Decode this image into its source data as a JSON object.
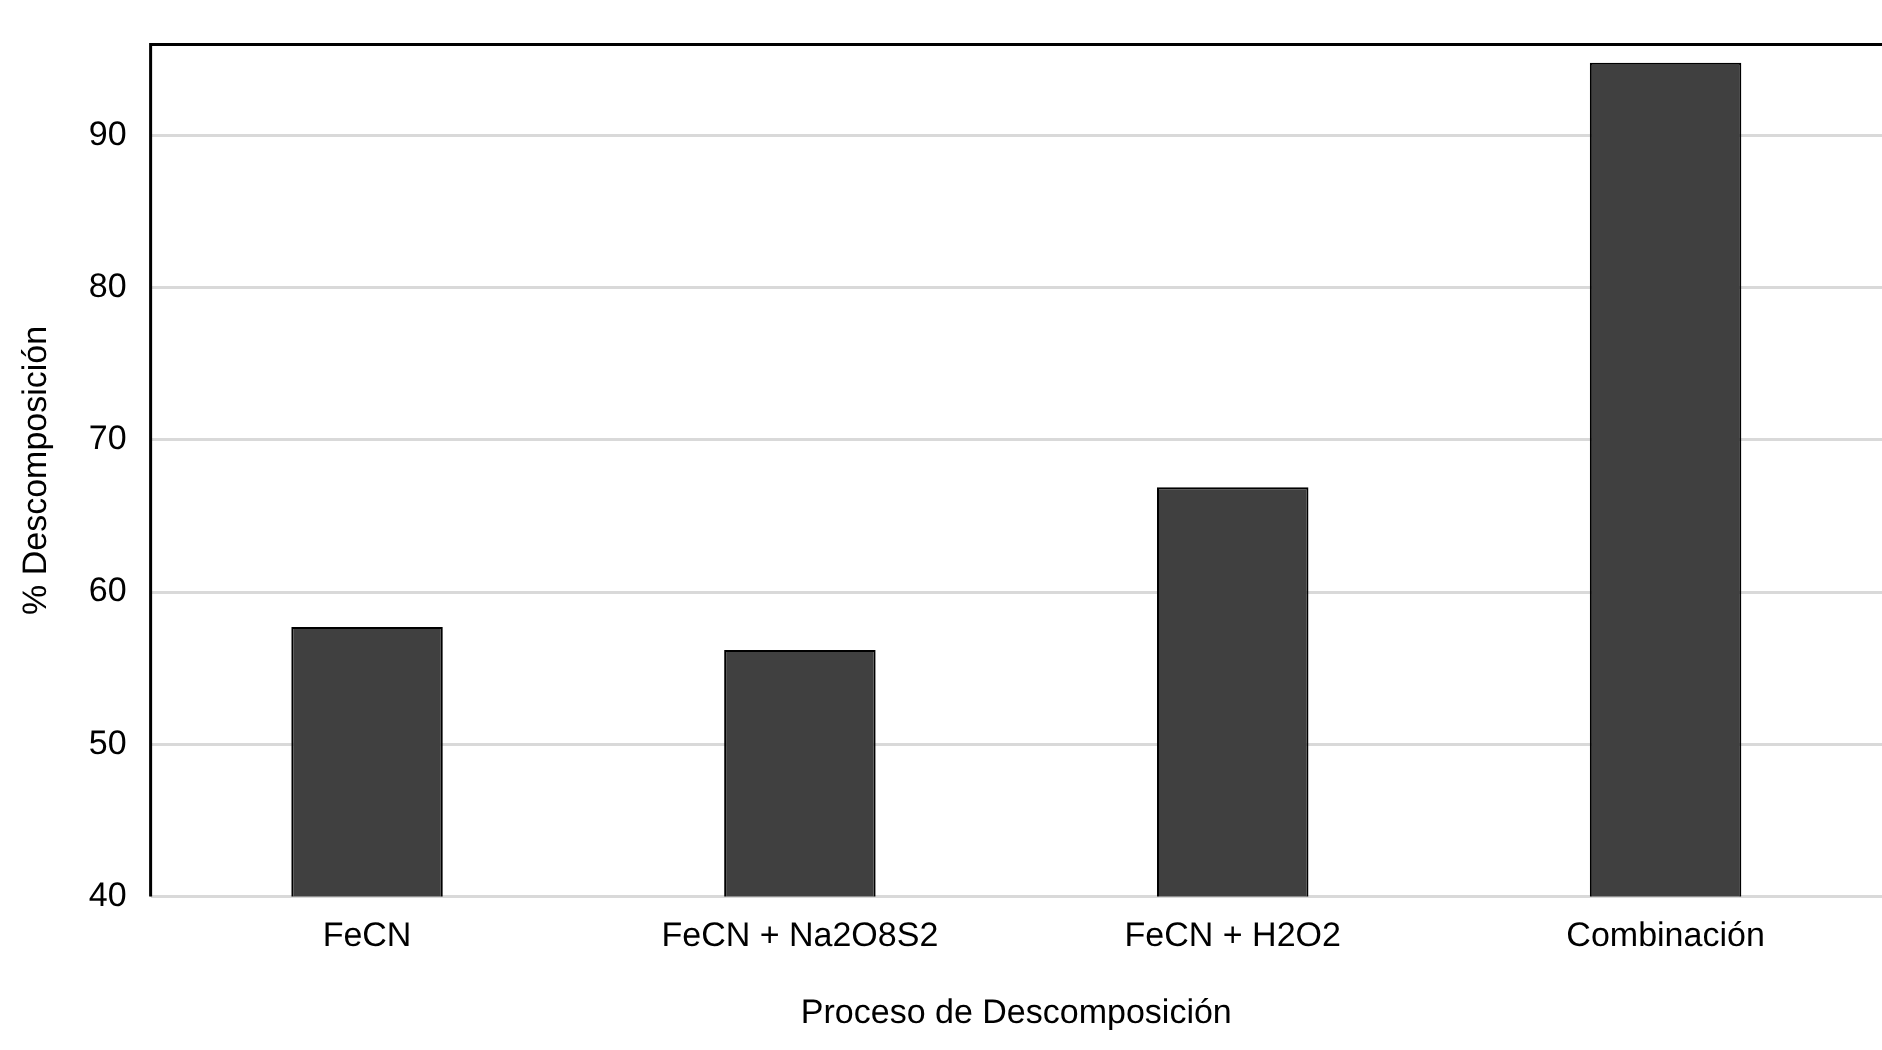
{
  "chart_data": {
    "type": "bar",
    "xlabel": "Proceso de Descomposición",
    "ylabel": "% Descomposición",
    "categories": [
      "FeCN",
      "FeCN + Na2O8S2",
      "FeCN + H2O2",
      "Combinación"
    ],
    "values": [
      57.7,
      56.2,
      66.9,
      94.8
    ],
    "color": "#404040",
    "ylim": [
      40,
      96
    ],
    "yticks": [
      40,
      50,
      60,
      70,
      80,
      90
    ],
    "grid": "y"
  }
}
